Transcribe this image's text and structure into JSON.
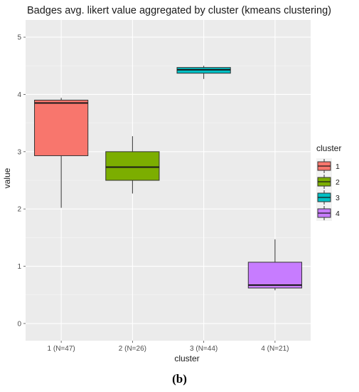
{
  "caption": "(b)",
  "chart_data": {
    "type": "boxplot",
    "title": "Badges avg. likert value aggregated by cluster (kmeans clustering)",
    "xlabel": "cluster",
    "ylabel": "value",
    "ylim": [
      -0.3,
      5.3
    ],
    "yticks": [
      0,
      1,
      2,
      3,
      4,
      5
    ],
    "grid": true,
    "background": "#ebebeb",
    "legend": {
      "title": "cluster",
      "position": "right"
    },
    "categories": [
      "1 (N=47)",
      "2 (N=26)",
      "3 (N=44)",
      "4 (N=21)"
    ],
    "series": [
      {
        "name": "1",
        "color": "#f8766d",
        "min": 2.02,
        "q1": 2.93,
        "median": 3.85,
        "q3": 3.9,
        "max": 3.94
      },
      {
        "name": "2",
        "color": "#7cae00",
        "min": 2.27,
        "q1": 2.5,
        "median": 2.73,
        "q3": 3.0,
        "max": 3.27
      },
      {
        "name": "3",
        "color": "#00bfc4",
        "min": 4.27,
        "q1": 4.37,
        "median": 4.43,
        "q3": 4.47,
        "max": 4.5
      },
      {
        "name": "4",
        "color": "#c77cff",
        "min": 0.58,
        "q1": 0.62,
        "median": 0.67,
        "q3": 1.07,
        "max": 1.47
      }
    ]
  }
}
